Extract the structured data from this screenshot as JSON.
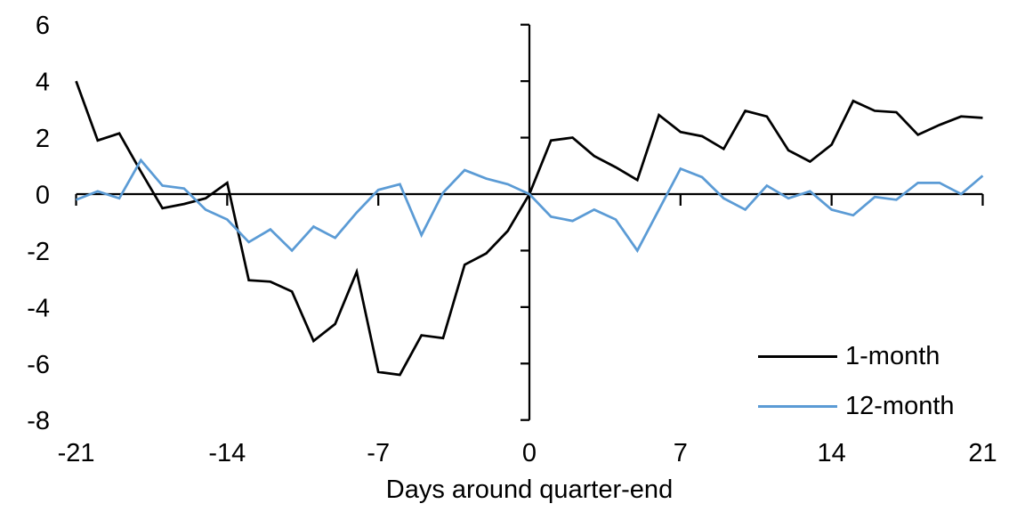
{
  "chart_data": {
    "type": "line",
    "title": "",
    "xlabel": "Days around quarter-end",
    "ylabel": "",
    "xlim": [
      -21,
      21
    ],
    "ylim": [
      -8,
      6
    ],
    "x_ticks": [
      -21,
      -14,
      -7,
      0,
      7,
      14,
      21
    ],
    "y_ticks": [
      6,
      4,
      2,
      0,
      -2,
      -4,
      -6,
      -8
    ],
    "grid": false,
    "legend_position": "bottom-right",
    "axis_color": "#000000",
    "x": [
      -21,
      -20,
      -19,
      -18,
      -17,
      -16,
      -15,
      -14,
      -13,
      -12,
      -11,
      -10,
      -9,
      -8,
      -7,
      -6,
      -5,
      -4,
      -3,
      -2,
      -1,
      0,
      1,
      2,
      3,
      4,
      5,
      6,
      7,
      8,
      9,
      10,
      11,
      12,
      13,
      14,
      15,
      16,
      17,
      18,
      19,
      20,
      21
    ],
    "series": [
      {
        "name": "1-month",
        "color": "#000000",
        "values": [
          4.0,
          1.9,
          2.15,
          0.8,
          -0.5,
          -0.35,
          -0.15,
          0.4,
          -3.05,
          -3.1,
          -3.45,
          -5.2,
          -4.6,
          -2.75,
          -6.3,
          -6.4,
          -5.0,
          -5.1,
          -2.5,
          -2.1,
          -1.3,
          0,
          1.9,
          2.0,
          1.35,
          0.95,
          0.5,
          2.8,
          2.2,
          2.05,
          1.6,
          2.95,
          2.75,
          1.55,
          1.15,
          1.75,
          3.3,
          2.95,
          2.9,
          2.1,
          2.45,
          2.75,
          2.7
        ]
      },
      {
        "name": "12-month",
        "color": "#5B9BD5",
        "values": [
          -0.2,
          0.1,
          -0.15,
          1.2,
          0.3,
          0.2,
          -0.55,
          -0.9,
          -1.7,
          -1.25,
          -2.0,
          -1.15,
          -1.55,
          -0.65,
          0.15,
          0.35,
          -1.45,
          0.05,
          0.85,
          0.55,
          0.35,
          0,
          -0.8,
          -0.95,
          -0.55,
          -0.9,
          -2.0,
          -0.55,
          0.9,
          0.6,
          -0.15,
          -0.55,
          0.3,
          -0.15,
          0.1,
          -0.55,
          -0.75,
          -0.1,
          -0.2,
          0.4,
          0.4,
          0.0,
          0.65
        ]
      }
    ]
  }
}
